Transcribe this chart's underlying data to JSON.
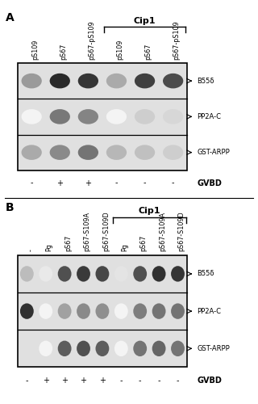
{
  "panel_A": {
    "label": "A",
    "cols": 6,
    "col_labels": [
      "pS109",
      "pS67",
      "pS67-pS109",
      "pS109",
      "pS67",
      "pS67-pS109"
    ],
    "cip1_bracket_cols": [
      3,
      4,
      5
    ],
    "cip1_label": "Cip1",
    "gvbd_signs": [
      "-",
      "+",
      "+",
      "-",
      "-",
      "-"
    ],
    "bands": [
      {
        "label": "B55δ",
        "intensities": [
          0.45,
          0.95,
          0.9,
          0.38,
          0.85,
          0.8
        ]
      },
      {
        "label": "PP2A-C",
        "intensities": [
          0.05,
          0.6,
          0.55,
          0.05,
          0.22,
          0.18
        ]
      },
      {
        "label": "GST-ARPP",
        "intensities": [
          0.38,
          0.52,
          0.62,
          0.32,
          0.28,
          0.22
        ]
      }
    ]
  },
  "panel_B": {
    "label": "B",
    "cols": 9,
    "col_labels": [
      "-",
      "Pg",
      "pS67",
      "pS67-S109A",
      "pS67-S109D",
      "Pg",
      "pS67",
      "pS67-S109A",
      "pS67-S109D"
    ],
    "cip1_bracket_cols": [
      5,
      6,
      7,
      8
    ],
    "cip1_label": "Cip1",
    "gvbd_signs": [
      "-",
      "+",
      "+",
      "+",
      "+",
      "-",
      "-",
      "-",
      "-"
    ],
    "bands": [
      {
        "label": "B55δ",
        "intensities": [
          0.3,
          0.1,
          0.78,
          0.88,
          0.82,
          0.12,
          0.78,
          0.92,
          0.9
        ]
      },
      {
        "label": "PP2A-C",
        "intensities": [
          0.92,
          0.05,
          0.42,
          0.52,
          0.5,
          0.05,
          0.58,
          0.62,
          0.62
        ]
      },
      {
        "label": "GST-ARPP",
        "intensities": [
          0.0,
          0.05,
          0.72,
          0.78,
          0.72,
          0.05,
          0.62,
          0.68,
          0.62
        ]
      }
    ]
  }
}
